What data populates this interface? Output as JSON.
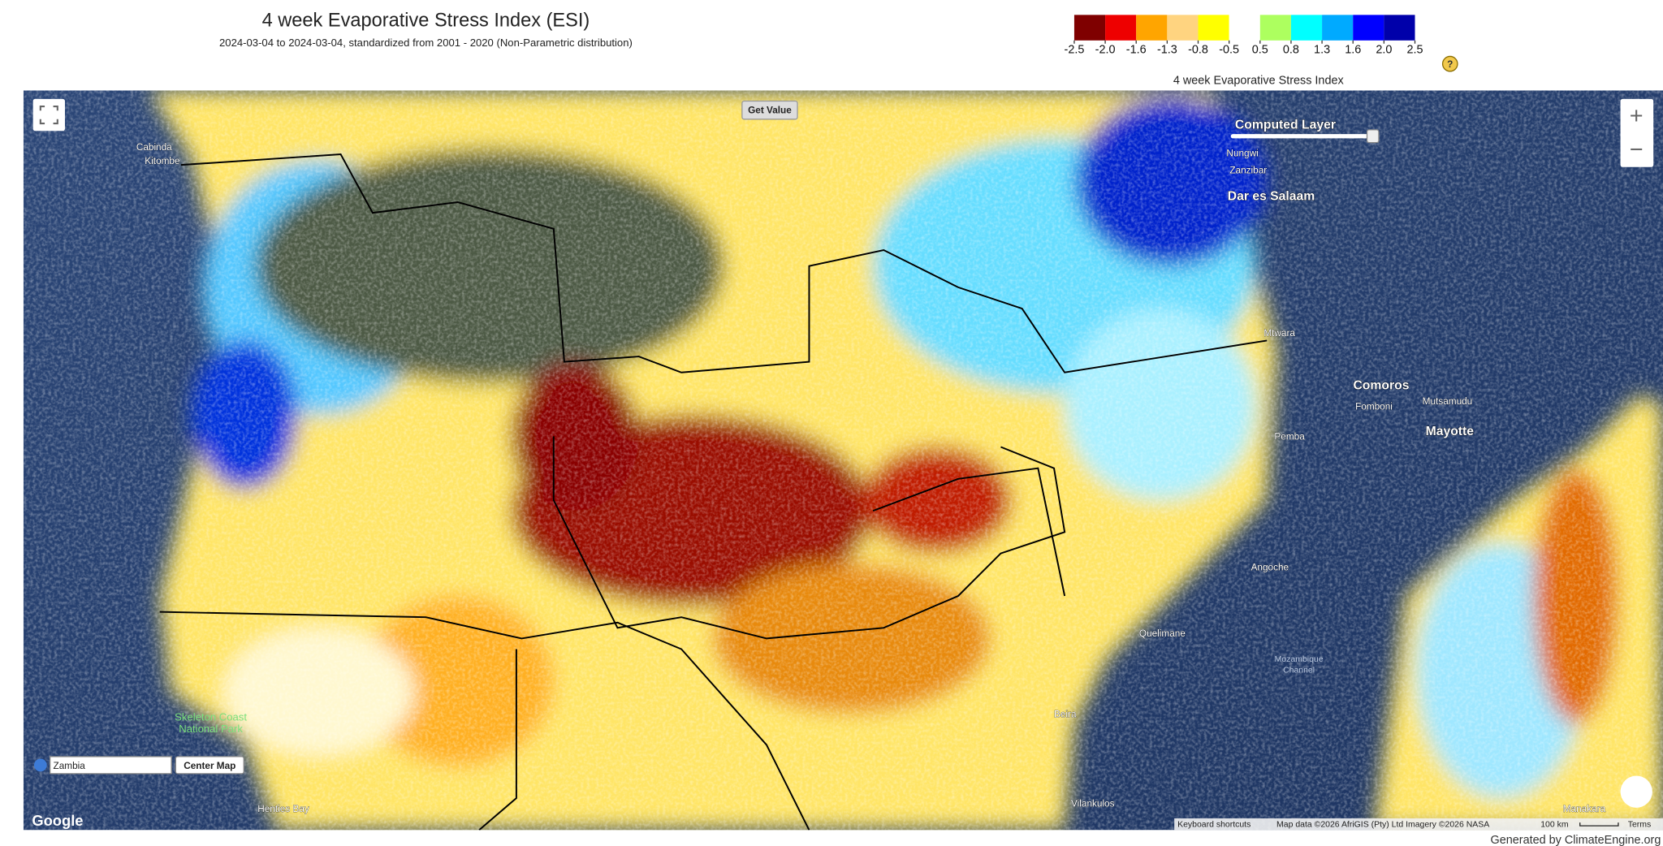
{
  "header": {
    "title": "4 week Evaporative Stress Index (ESI)",
    "subtitle": "2024-03-04 to 2024-03-04, standardized from 2001 - 2020 (Non-Parametric distribution)"
  },
  "legend": {
    "title": "4 week Evaporative Stress Index",
    "help": "?",
    "ticks": [
      -2.5,
      {
        "value": -2,
        "label": "-2.0"
      },
      -1.6,
      -1.3,
      -0.8,
      -0.5,
      0.5,
      0.8,
      1.3,
      1.6,
      {
        "value": 2,
        "label": "2.0"
      },
      2.5
    ],
    "colors": [
      "#7f0000",
      "#ee0000",
      "#ffa500",
      "#ffd480",
      "#ffff00",
      "#ffffff",
      "#adff5f",
      "#00ffff",
      "#00aaff",
      "#0000ff",
      "#0000aa"
    ]
  },
  "map": {
    "layer_control": "Computed Layer",
    "get_value": "Get Value",
    "zoom_in": "+",
    "zoom_out": "−",
    "search_value": "Zambia",
    "center_map": "Center Map",
    "logo": "Google",
    "attribution": [
      "Keyboard shortcuts",
      "Map data ©2026 AfriGIS (Pty) Ltd Imagery ©2026 NASA",
      "100 km",
      "Terms"
    ],
    "places": [
      "Dar es Salaam",
      "Comoros",
      "Mayotte",
      "Mozambique",
      "Channel",
      "Quelimane",
      "Angoche",
      "Pemba",
      "Mtwara",
      "Nungwi",
      "Zanzibar",
      "Cabinda",
      "Kitombe",
      "Henties Bay",
      "Skeleton Coast",
      "National Park",
      "Beira",
      "Vilankulos",
      "Manakara",
      "Mutsamudu",
      "Fomboni"
    ]
  },
  "footer": "Generated by ClimateEngine.org"
}
